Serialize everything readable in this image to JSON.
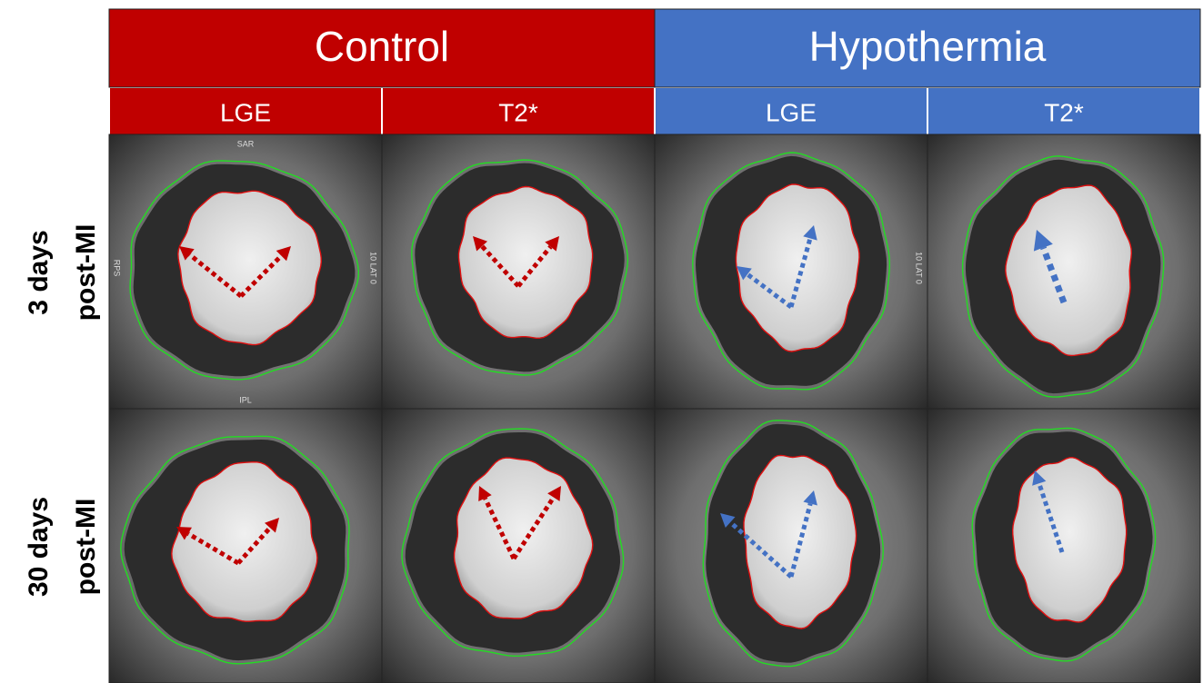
{
  "header": {
    "groups": [
      {
        "label": "Control",
        "columns": [
          "LGE",
          "T2*"
        ]
      },
      {
        "label": "Hypothermia",
        "columns": [
          "LGE",
          "T2*"
        ]
      }
    ]
  },
  "rows": [
    {
      "label_lines": [
        "3 days",
        "post-MI"
      ]
    },
    {
      "label_lines": [
        "30 days",
        "post-MI"
      ]
    }
  ],
  "overlays": [
    {
      "text": "SAR"
    },
    {
      "text": "IPL"
    },
    {
      "text": "RPS"
    },
    {
      "text": "10 LAT 0"
    },
    {
      "text": "10 LAT 0"
    }
  ]
}
